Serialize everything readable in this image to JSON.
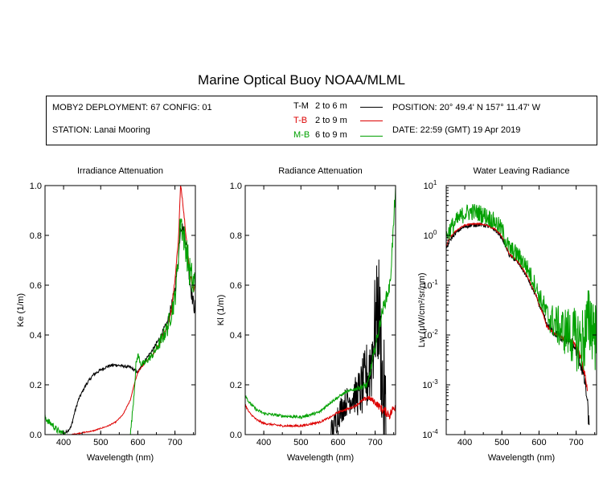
{
  "title": "Marine Optical Buoy NOAA/MLML",
  "info": {
    "deployment": "MOBY2 DEPLOYMENT: 67 CONFIG: 01",
    "station": "STATION: Lanai Mooring",
    "position": "POSITION: 20° 49.4' N   157° 11.47' W",
    "date": "DATE: 22:59 (GMT) 19 Apr 2019"
  },
  "legend": [
    {
      "code": "T-M",
      "depth": "2 to 6  m",
      "color": "#000000"
    },
    {
      "code": "T-B",
      "depth": "2 to 9  m",
      "color": "#dd0000"
    },
    {
      "code": "M-B",
      "depth": "6 to 9  m",
      "color": "#00a000"
    }
  ],
  "chart_data": [
    {
      "type": "line",
      "title": "Irradiance Attenuation",
      "xlabel": "Wavelength (nm)",
      "ylabel": "Ke  (1/m)",
      "xlim": [
        350,
        755
      ],
      "ylim": [
        0,
        1
      ],
      "yscale": "linear",
      "xticks": [
        400,
        500,
        600,
        700
      ],
      "yticks": [
        "0.0",
        "0.2",
        "0.4",
        "0.6",
        "0.8",
        "1.0"
      ],
      "yticks_values": [
        0,
        0.2,
        0.4,
        0.6,
        0.8,
        1.0
      ],
      "series": [
        {
          "name": "T-M",
          "color": "#000000",
          "noise": 0.006,
          "x": [
            350,
            380,
            400,
            420,
            430,
            440,
            460,
            480,
            500,
            520,
            540,
            560,
            580,
            590,
            600,
            620,
            640,
            660,
            680,
            700,
            710,
            715,
            720,
            730,
            740,
            750,
            755
          ],
          "y": [
            0.0,
            0.0,
            0.0,
            0.03,
            0.09,
            0.14,
            0.2,
            0.24,
            0.26,
            0.275,
            0.28,
            0.275,
            0.27,
            0.26,
            0.25,
            0.3,
            0.34,
            0.39,
            0.45,
            0.58,
            0.72,
            0.84,
            0.83,
            0.78,
            0.62,
            0.52,
            0.51
          ]
        },
        {
          "name": "T-B",
          "color": "#dd0000",
          "noise": 0.002,
          "x": [
            350,
            380,
            400,
            420,
            440,
            460,
            480,
            500,
            520,
            540,
            560,
            580,
            590,
            600,
            620,
            640,
            660,
            670,
            680,
            690,
            700,
            710,
            715,
            720,
            730,
            740,
            750,
            755
          ],
          "y": [
            0.0,
            0.0,
            0.0,
            0.0,
            0.005,
            0.01,
            0.015,
            0.025,
            0.035,
            0.05,
            0.08,
            0.14,
            0.2,
            0.25,
            0.29,
            0.32,
            0.37,
            0.41,
            0.43,
            0.5,
            0.62,
            0.8,
            1.0,
            0.95,
            0.8,
            0.65,
            0.58,
            0.6
          ]
        },
        {
          "name": "M-B",
          "color": "#00a000",
          "noise": 0.014,
          "x": [
            350,
            360,
            370,
            380,
            390,
            400,
            405,
            580,
            585,
            590,
            595,
            600,
            605,
            610,
            620,
            640,
            660,
            680,
            700,
            710,
            715,
            720,
            730,
            740,
            750,
            755
          ],
          "y": [
            0.07,
            0.05,
            0.04,
            0.02,
            0.01,
            0.005,
            0.0,
            0.0,
            0.08,
            0.17,
            0.28,
            0.32,
            0.3,
            0.28,
            0.29,
            0.32,
            0.37,
            0.43,
            0.55,
            0.73,
            0.88,
            0.82,
            0.75,
            0.65,
            0.6,
            0.62
          ]
        }
      ]
    },
    {
      "type": "line",
      "title": "Radiance Attenuation",
      "xlabel": "Wavelength (nm)",
      "ylabel": "Kl  (1/m)",
      "xlim": [
        350,
        755
      ],
      "ylim": [
        0,
        1
      ],
      "yscale": "linear",
      "xticks": [
        400,
        500,
        600,
        700
      ],
      "yticks": [
        "0.0",
        "0.2",
        "0.4",
        "0.6",
        "0.8",
        "1.0"
      ],
      "yticks_values": [
        0,
        0.2,
        0.4,
        0.6,
        0.8,
        1.0
      ],
      "series": [
        {
          "name": "T-M",
          "color": "#000000",
          "noise": 0.06,
          "x": [
            580,
            590,
            600,
            620,
            640,
            660,
            670,
            680,
            690,
            700,
            710,
            720,
            730
          ],
          "y": [
            0.0,
            0.03,
            0.08,
            0.13,
            0.15,
            0.17,
            0.2,
            0.24,
            0.3,
            0.45,
            0.5,
            0.2,
            0.0
          ]
        },
        {
          "name": "T-B",
          "color": "#dd0000",
          "noise": 0.004,
          "x": [
            350,
            360,
            380,
            400,
            450,
            500,
            550,
            580,
            600,
            620,
            640,
            660,
            680,
            700,
            720,
            740,
            755
          ],
          "y": [
            0.12,
            0.09,
            0.06,
            0.045,
            0.035,
            0.035,
            0.05,
            0.07,
            0.09,
            0.1,
            0.11,
            0.13,
            0.15,
            0.13,
            0.1,
            0.08,
            0.12
          ]
        },
        {
          "name": "M-B",
          "color": "#00a000",
          "noise": 0.006,
          "x": [
            350,
            360,
            380,
            400,
            450,
            500,
            550,
            580,
            600,
            620,
            640,
            660,
            680,
            700,
            720,
            740,
            750,
            755
          ],
          "y": [
            0.16,
            0.13,
            0.1,
            0.085,
            0.075,
            0.07,
            0.09,
            0.13,
            0.15,
            0.17,
            0.18,
            0.19,
            0.2,
            0.35,
            0.5,
            0.6,
            0.85,
            1.0
          ]
        }
      ]
    },
    {
      "type": "line",
      "title": "Water Leaving Radiance",
      "xlabel": "Wavelength (nm)",
      "ylabel": "Lw  (μW/cm²/sr/nm)",
      "xlim": [
        350,
        755
      ],
      "ylim": [
        0.0001,
        10
      ],
      "yscale": "log",
      "xticks": [
        400,
        500,
        600,
        700
      ],
      "yticks_values": [
        0.0001,
        0.001,
        0.01,
        0.1,
        1,
        10
      ],
      "ytick_exponents": [
        "-4",
        "-3",
        "-2",
        "-1",
        "0",
        "1"
      ],
      "ytick_base": "10",
      "series": [
        {
          "name": "T-M",
          "color": "#000000",
          "noise": 0.04,
          "x": [
            350,
            360,
            380,
            400,
            420,
            440,
            460,
            480,
            500,
            510,
            520,
            540,
            560,
            580,
            600,
            620,
            640,
            660,
            680,
            700,
            710,
            720,
            730,
            735
          ],
          "y": [
            0.5,
            0.8,
            1.2,
            1.5,
            1.6,
            1.65,
            1.55,
            1.3,
            0.9,
            0.6,
            0.4,
            0.3,
            0.18,
            0.09,
            0.04,
            0.016,
            0.011,
            0.009,
            0.008,
            0.005,
            0.003,
            0.0015,
            0.0004,
            0.00012
          ]
        },
        {
          "name": "T-B",
          "color": "#dd0000",
          "noise": 0.015,
          "x": [
            350,
            360,
            380,
            400,
            420,
            440,
            460,
            480,
            500,
            510,
            520,
            540,
            560,
            580,
            600,
            620,
            640,
            660,
            680,
            700,
            710,
            720,
            730
          ],
          "y": [
            0.6,
            0.9,
            1.3,
            1.6,
            1.7,
            1.7,
            1.6,
            1.35,
            0.95,
            0.62,
            0.42,
            0.31,
            0.19,
            0.095,
            0.04,
            0.015,
            0.011,
            0.009,
            0.0085,
            0.006,
            0.004,
            0.002,
            0.0008
          ]
        },
        {
          "name": "M-B",
          "color": "#00a000",
          "noise": 0.18,
          "x": [
            350,
            360,
            380,
            400,
            420,
            440,
            460,
            480,
            500,
            510,
            520,
            540,
            560,
            580,
            600,
            620,
            640,
            660,
            680,
            700,
            720,
            740,
            755
          ],
          "y": [
            0.9,
            1.3,
            2.0,
            2.8,
            3.0,
            2.8,
            2.4,
            1.9,
            1.3,
            0.8,
            0.55,
            0.42,
            0.28,
            0.14,
            0.06,
            0.025,
            0.018,
            0.013,
            0.011,
            0.008,
            0.008,
            0.02,
            0.01
          ]
        }
      ]
    }
  ]
}
